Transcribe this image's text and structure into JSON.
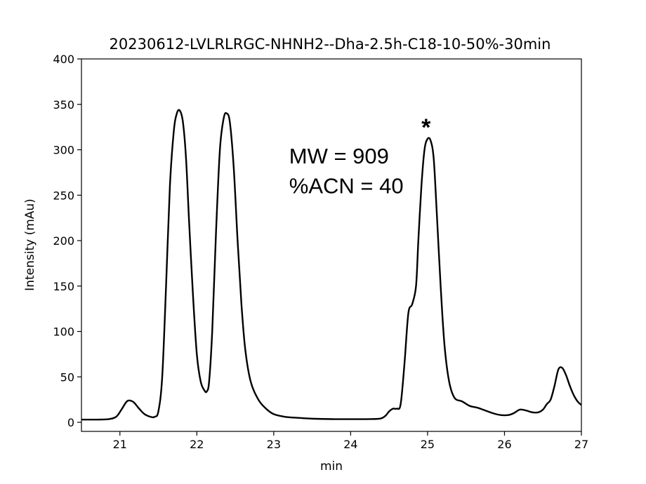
{
  "chart_data": {
    "type": "line",
    "title": "20230612-LVLRLRGC-NHNH2--Dha-2.5h-C18-10-50%-30min",
    "xlabel": "min",
    "ylabel": "Intensity (mAu)",
    "xlim": [
      20.5,
      27
    ],
    "ylim": [
      -10,
      400
    ],
    "x_ticks": [
      21,
      22,
      23,
      24,
      25,
      26,
      27
    ],
    "y_ticks": [
      0,
      50,
      100,
      150,
      200,
      250,
      300,
      350,
      400
    ],
    "grid": false,
    "series": [
      {
        "name": "chromatogram",
        "x": [
          20.5,
          20.7,
          20.85,
          20.95,
          21.02,
          21.08,
          21.12,
          21.18,
          21.25,
          21.32,
          21.4,
          21.45,
          21.5,
          21.55,
          21.6,
          21.65,
          21.7,
          21.74,
          21.78,
          21.82,
          21.86,
          21.9,
          21.95,
          22.0,
          22.05,
          22.1,
          22.13,
          22.16,
          22.2,
          22.25,
          22.3,
          22.35,
          22.39,
          22.43,
          22.48,
          22.53,
          22.58,
          22.63,
          22.7,
          22.8,
          22.9,
          23.0,
          23.15,
          23.3,
          23.5,
          23.8,
          24.0,
          24.2,
          24.38,
          24.45,
          24.5,
          24.55,
          24.6,
          24.65,
          24.7,
          24.75,
          24.8,
          24.85,
          24.88,
          24.92,
          24.96,
          25.0,
          25.04,
          25.08,
          25.12,
          25.17,
          25.22,
          25.28,
          25.35,
          25.45,
          25.55,
          25.65,
          25.75,
          25.85,
          25.95,
          26.05,
          26.12,
          26.2,
          26.28,
          26.36,
          26.44,
          26.5,
          26.55,
          26.6,
          26.65,
          26.7,
          26.75,
          26.8,
          26.85,
          26.9,
          26.95,
          27.0
        ],
        "y": [
          3,
          3,
          3.5,
          6,
          14,
          22,
          24,
          22,
          15,
          9,
          6,
          6,
          12,
          50,
          150,
          260,
          320,
          340,
          343,
          330,
          290,
          220,
          140,
          75,
          45,
          35,
          34,
          45,
          100,
          210,
          300,
          335,
          340,
          330,
          280,
          200,
          130,
          80,
          45,
          25,
          15,
          9,
          6,
          5,
          4,
          3.5,
          3.5,
          3.5,
          4,
          7,
          12,
          15,
          15,
          20,
          65,
          120,
          130,
          150,
          200,
          260,
          300,
          312,
          310,
          290,
          230,
          150,
          85,
          45,
          27,
          23,
          18,
          16,
          13,
          10,
          8,
          8,
          10,
          14,
          13,
          11,
          11,
          14,
          20,
          25,
          40,
          58,
          60,
          52,
          40,
          30,
          23,
          19
        ]
      }
    ],
    "annotations": [
      {
        "text": "MW = 909",
        "x": 23.2,
        "y": 285
      },
      {
        "text": "%ACN = 40",
        "x": 23.2,
        "y": 252
      },
      {
        "text": "*",
        "x": 24.92,
        "y": 316
      }
    ]
  }
}
